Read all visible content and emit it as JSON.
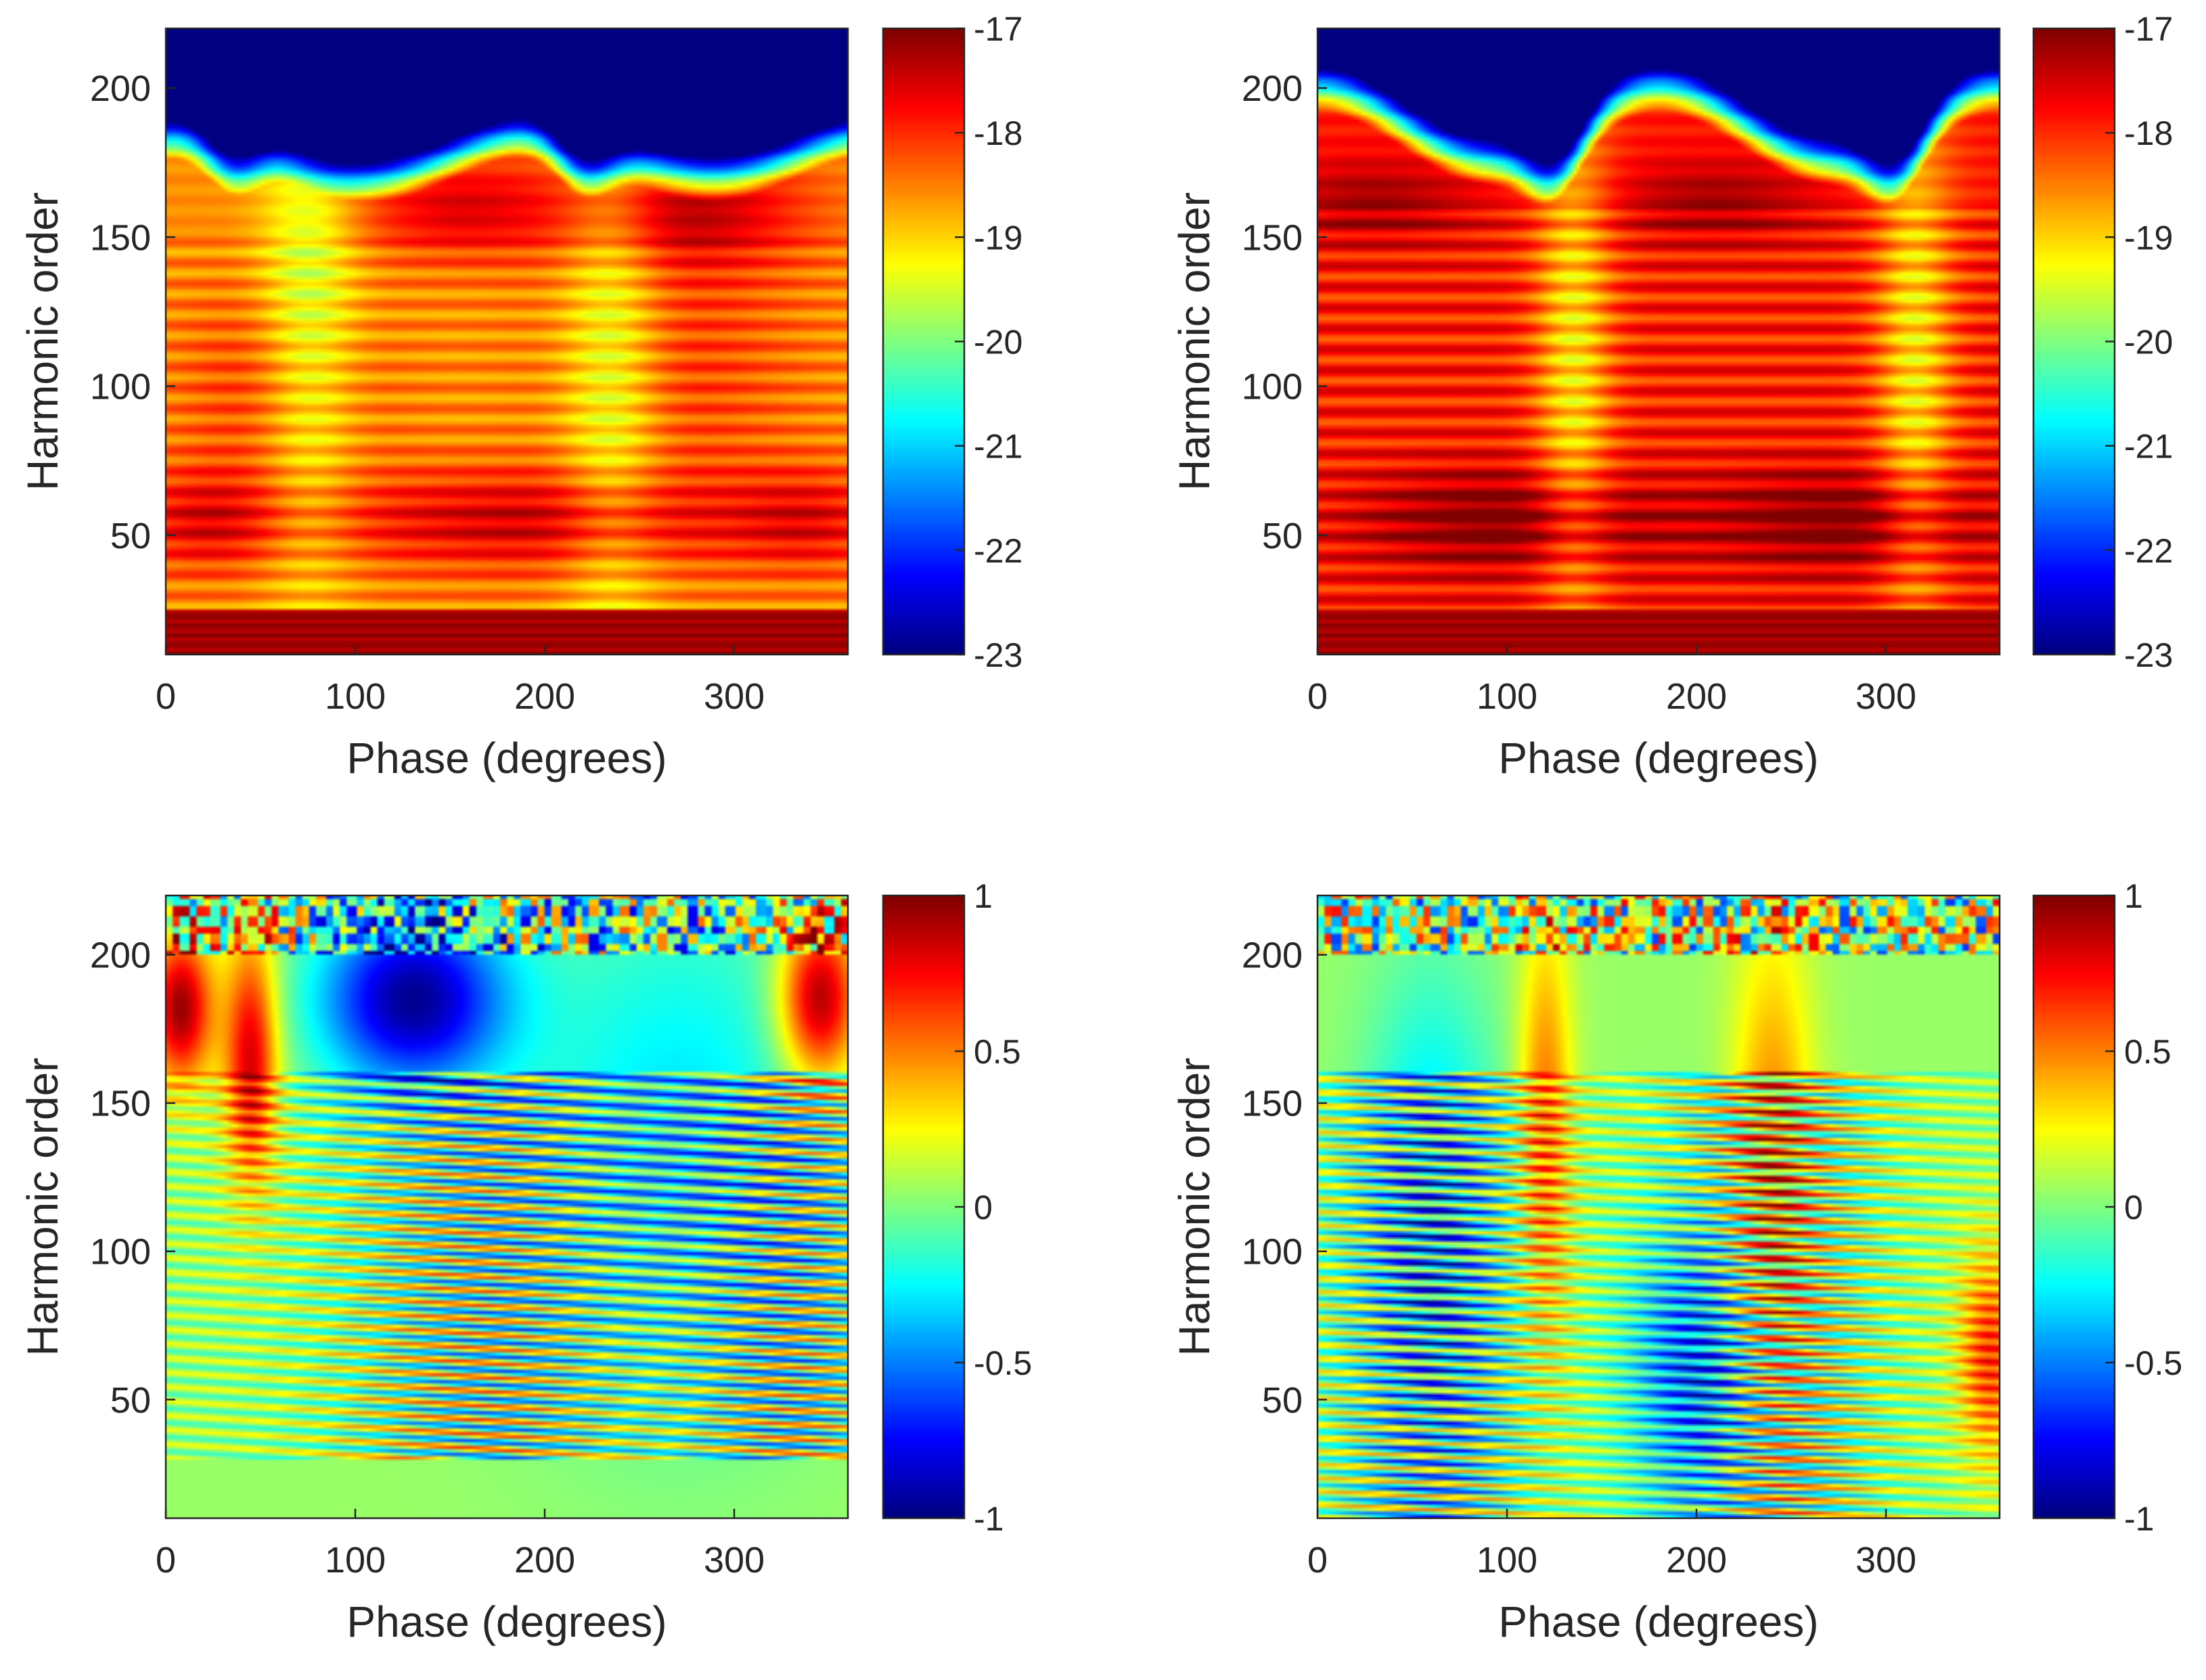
{
  "chart_data": [
    {
      "type": "heatmap",
      "panel": "top-left",
      "xlabel": "Phase (degrees)",
      "ylabel": "Harmonic order",
      "xlim": [
        0,
        360
      ],
      "ylim": [
        10,
        220
      ],
      "xticks": [
        0,
        100,
        200,
        300
      ],
      "yticks": [
        50,
        100,
        150,
        200
      ],
      "colorbar": {
        "range": [
          -23,
          -17
        ],
        "ticks": [
          -17,
          -18,
          -19,
          -20,
          -21,
          -22,
          -23
        ],
        "colormap": "jet"
      },
      "features": {
        "cutoff_harmonic_peaks": [
          {
            "phase": 0,
            "h": 180
          },
          {
            "phase": 150,
            "h": 176
          },
          {
            "phase": 270,
            "h": 180
          }
        ],
        "cutoff_harmonic_dips": [
          {
            "phase": 35,
            "h": 155
          },
          {
            "phase": 220,
            "h": 155
          }
        ],
        "strong_bands": [
          {
            "phase": 20,
            "h": 55,
            "value": -17.5
          },
          {
            "phase": 150,
            "h": 160,
            "value": -17.6
          },
          {
            "phase": 270,
            "h": 165,
            "value": -17.4
          },
          {
            "phase": 200,
            "h": 55,
            "value": -17.3
          }
        ],
        "low_order_band": {
          "h": [
            10,
            25
          ],
          "value": -17
        }
      }
    },
    {
      "type": "heatmap",
      "panel": "top-right",
      "xlabel": "Phase (degrees)",
      "ylabel": "Harmonic order",
      "xlim": [
        0,
        360
      ],
      "ylim": [
        10,
        220
      ],
      "xticks": [
        0,
        100,
        200,
        300
      ],
      "yticks": [
        50,
        100,
        150,
        200
      ],
      "colorbar": {
        "range": [
          -23,
          -17
        ],
        "ticks": [
          -17,
          -18,
          -19,
          -20,
          -21,
          -22,
          -23
        ],
        "colormap": "jet"
      },
      "features": {
        "cutoff_harmonic_peaks": [
          {
            "phase": 0,
            "h": 192
          },
          {
            "phase": 180,
            "h": 192
          },
          {
            "phase": 360,
            "h": 192
          }
        ],
        "cutoff_harmonic_dips": [
          {
            "phase": 125,
            "h": 140
          },
          {
            "phase": 305,
            "h": 140
          }
        ],
        "strong_bands": [
          {
            "phase": 30,
            "h": 160,
            "value": -17.1
          },
          {
            "phase": 210,
            "h": 160,
            "value": -17.1
          },
          {
            "phase": 110,
            "h": 55,
            "value": -17.0
          },
          {
            "phase": 290,
            "h": 55,
            "value": -17.0
          }
        ],
        "low_order_band": {
          "h": [
            10,
            20
          ],
          "value": -17
        }
      }
    },
    {
      "type": "heatmap",
      "panel": "bottom-left",
      "xlabel": "Phase (degrees)",
      "ylabel": "Harmonic order",
      "xlim": [
        0,
        360
      ],
      "ylim": [
        10,
        220
      ],
      "xticks": [
        0,
        100,
        200,
        300
      ],
      "yticks": [
        50,
        100,
        150,
        200
      ],
      "colorbar": {
        "range": [
          -1,
          1
        ],
        "ticks": [
          1,
          0.5,
          0,
          -0.5,
          -1
        ],
        "colormap": "jet"
      },
      "features": {
        "positive_lobes": [
          {
            "phase": 10,
            "h": 182,
            "value": 0.9
          },
          {
            "phase": 45,
            "h": 160,
            "value": 0.8
          },
          {
            "phase": 345,
            "h": 185,
            "value": 0.95
          }
        ],
        "negative_lobes": [
          {
            "phase": 130,
            "h": 185,
            "value": -1.0
          }
        ],
        "noisy_region_above_h": 200
      }
    },
    {
      "type": "heatmap",
      "panel": "bottom-right",
      "xlabel": "Phase (degrees)",
      "ylabel": "Harmonic order",
      "xlim": [
        0,
        360
      ],
      "ylim": [
        10,
        220
      ],
      "xticks": [
        0,
        100,
        200,
        300
      ],
      "yticks": [
        50,
        100,
        150,
        200
      ],
      "colorbar": {
        "range": [
          -1,
          1
        ],
        "ticks": [
          1,
          0.5,
          0,
          -0.5,
          -1
        ],
        "colormap": "jet"
      },
      "features": {
        "positive_lobes": [
          {
            "phase": 120,
            "h": 140,
            "value": 0.5
          },
          {
            "phase": 240,
            "h": 120,
            "value": 0.5
          },
          {
            "phase": 355,
            "h": 65,
            "value": 0.6
          }
        ],
        "negative_lobes": [
          {
            "phase": 60,
            "h": 90,
            "value": -0.6
          },
          {
            "phase": 200,
            "h": 60,
            "value": -0.7
          }
        ],
        "noisy_region_above_h": 200
      }
    }
  ]
}
